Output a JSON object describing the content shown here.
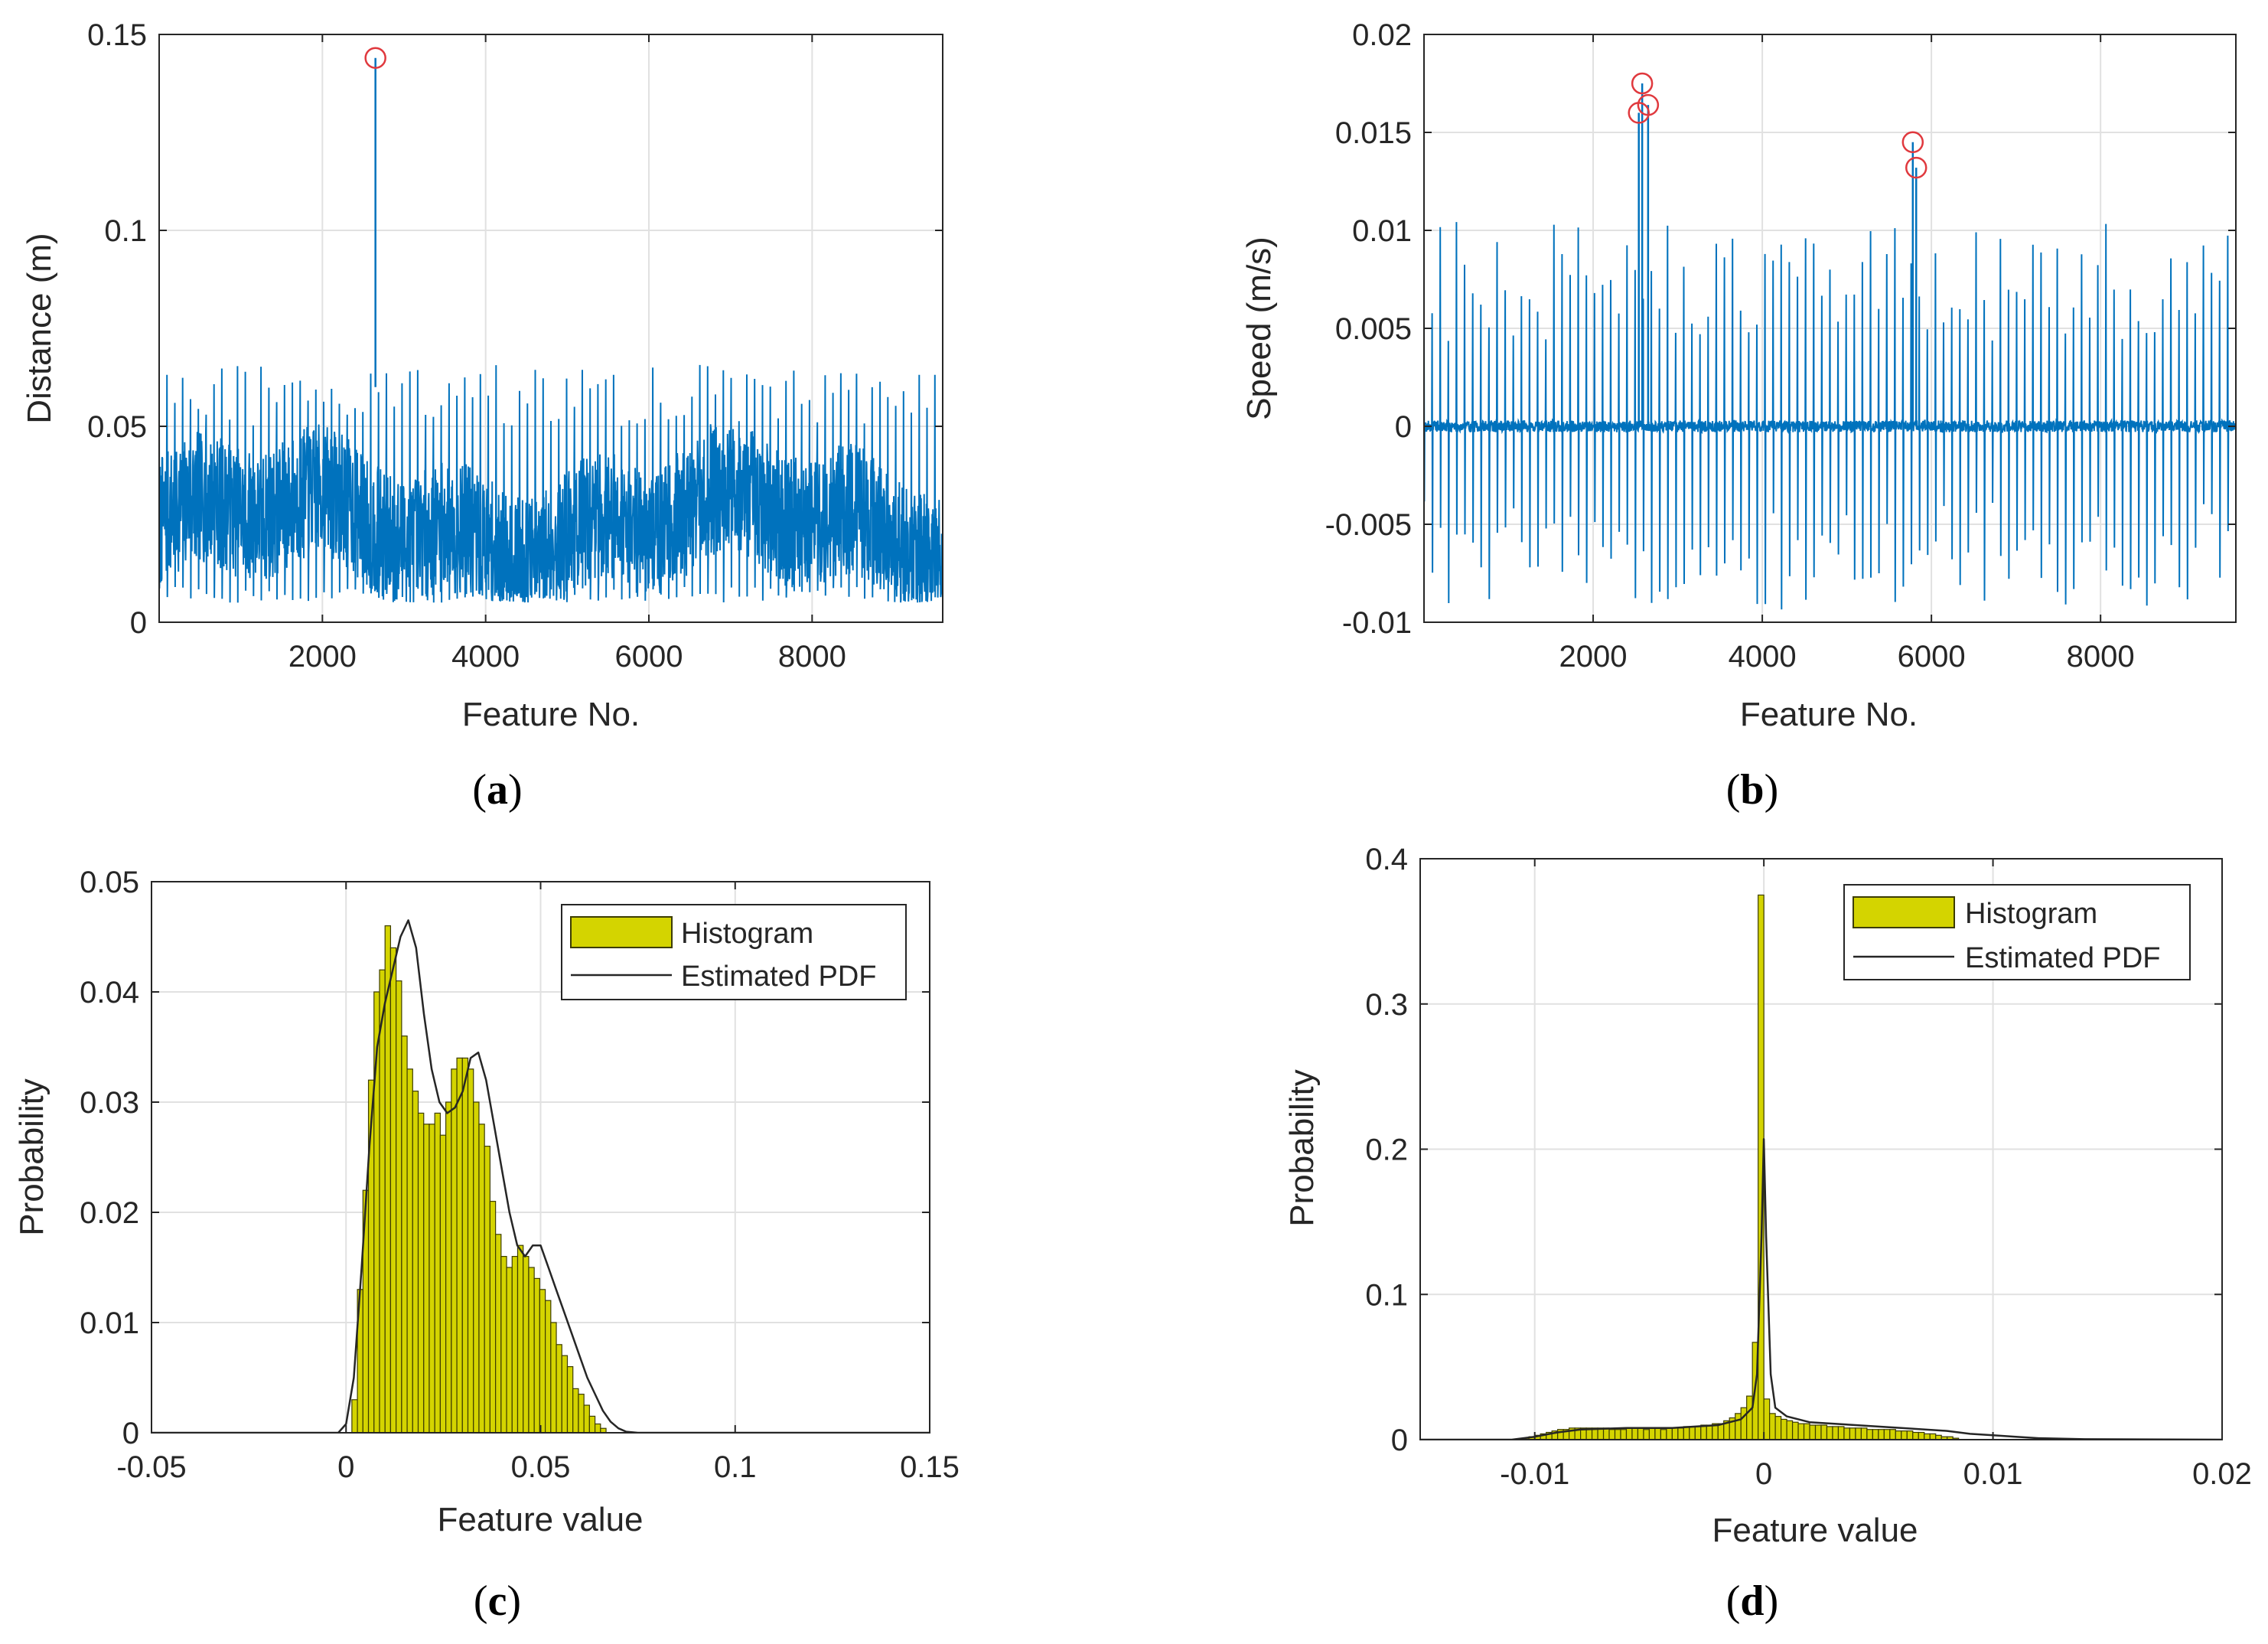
{
  "figure": {
    "panel_labels": [
      {
        "open": "(",
        "letter": "a",
        "close": ")"
      },
      {
        "open": "(",
        "letter": "b",
        "close": ")"
      },
      {
        "open": "(",
        "letter": "c",
        "close": ")"
      },
      {
        "open": "(",
        "letter": "d",
        "close": ")"
      }
    ],
    "colors": {
      "signal": "#0072BD",
      "marker": "#e0393e",
      "histogram_fill": "#d4d400",
      "histogram_edge": "#3d3d00",
      "pdf_line": "#262626",
      "grid": "#e1e1e1",
      "axis": "#262626"
    }
  },
  "chart_data": [
    {
      "type": "line",
      "panel": "a",
      "title": "",
      "xlabel": "Feature No.",
      "ylabel": "Distance (m)",
      "xlim": [
        0,
        9600
      ],
      "ylim": [
        0,
        0.15
      ],
      "xticks": [
        2000,
        4000,
        6000,
        8000
      ],
      "xtick_labels": [
        "2000",
        "4000",
        "6000",
        "8000"
      ],
      "yticks": [
        0,
        0.05,
        0.1,
        0.15
      ],
      "ytick_labels": [
        "0",
        "0.05",
        "0.1",
        "0.15"
      ],
      "grid": true,
      "series": [
        {
          "name": "distance",
          "n_points": 9600,
          "baseline": 0.025,
          "band_low": 0.005,
          "band_high": 0.05,
          "peaks_max": 0.065,
          "peak_every": 96
        }
      ],
      "markers": [
        {
          "x": 2650,
          "y": 0.144
        }
      ]
    },
    {
      "type": "line",
      "panel": "b",
      "title": "",
      "xlabel": "Feature No.",
      "ylabel": "Speed (m/s)",
      "xlim": [
        0,
        9600
      ],
      "ylim": [
        -0.01,
        0.02
      ],
      "xticks": [
        2000,
        4000,
        6000,
        8000
      ],
      "xtick_labels": [
        "2000",
        "4000",
        "6000",
        "8000"
      ],
      "yticks": [
        -0.01,
        -0.005,
        0,
        0.005,
        0.01,
        0.015,
        0.02
      ],
      "ytick_labels": [
        "-0.01",
        "-0.005",
        "0",
        "0.005",
        "0.01",
        "0.015",
        "0.02"
      ],
      "grid": true,
      "series": [
        {
          "name": "speed",
          "n_points": 9600,
          "baseline": 0,
          "pos_typical": 0.0095,
          "neg_typical": -0.0085,
          "peak_every": 96
        }
      ],
      "markers": [
        {
          "x": 2540,
          "y": 0.016
        },
        {
          "x": 2580,
          "y": 0.0175
        },
        {
          "x": 2650,
          "y": 0.0164
        },
        {
          "x": 5780,
          "y": 0.0145
        },
        {
          "x": 5820,
          "y": 0.0132
        }
      ]
    },
    {
      "type": "histogram",
      "panel": "c",
      "title": "",
      "xlabel": "Feature value",
      "ylabel": "Probability",
      "xlim": [
        -0.05,
        0.15
      ],
      "ylim": [
        0,
        0.05
      ],
      "xticks": [
        -0.05,
        0,
        0.05,
        0.1,
        0.15
      ],
      "xtick_labels": [
        "-0.05",
        "0",
        "0.05",
        "0.1",
        "0.15"
      ],
      "yticks": [
        0,
        0.01,
        0.02,
        0.03,
        0.04,
        0.05
      ],
      "ytick_labels": [
        "0",
        "0.01",
        "0.02",
        "0.03",
        "0.04",
        "0.05"
      ],
      "grid": true,
      "legend": {
        "position": "top-right",
        "entries": [
          "Histogram",
          "Estimated PDF"
        ]
      },
      "bin_start": 0.0015,
      "bin_width": 0.00142,
      "values": [
        0.003,
        0.013,
        0.022,
        0.032,
        0.04,
        0.042,
        0.046,
        0.044,
        0.041,
        0.036,
        0.033,
        0.031,
        0.029,
        0.028,
        0.028,
        0.029,
        0.027,
        0.03,
        0.033,
        0.034,
        0.034,
        0.033,
        0.03,
        0.028,
        0.026,
        0.021,
        0.018,
        0.016,
        0.015,
        0.016,
        0.017,
        0.016,
        0.015,
        0.014,
        0.013,
        0.012,
        0.01,
        0.008,
        0.007,
        0.006,
        0.004,
        0.0035,
        0.0025,
        0.0015,
        0.0008,
        0.0004
      ],
      "pdf": {
        "x": [
          -0.05,
          -0.002,
          0.0,
          0.002,
          0.004,
          0.006,
          0.008,
          0.01,
          0.012,
          0.014,
          0.016,
          0.018,
          0.02,
          0.022,
          0.024,
          0.026,
          0.028,
          0.03,
          0.032,
          0.034,
          0.036,
          0.038,
          0.04,
          0.042,
          0.044,
          0.046,
          0.048,
          0.05,
          0.052,
          0.054,
          0.056,
          0.058,
          0.06,
          0.062,
          0.064,
          0.066,
          0.068,
          0.07,
          0.072,
          0.075,
          0.15
        ],
        "y": [
          0,
          0,
          0.0008,
          0.005,
          0.015,
          0.026,
          0.035,
          0.039,
          0.042,
          0.045,
          0.0465,
          0.044,
          0.038,
          0.033,
          0.03,
          0.029,
          0.0295,
          0.031,
          0.034,
          0.0345,
          0.032,
          0.028,
          0.024,
          0.02,
          0.017,
          0.016,
          0.017,
          0.017,
          0.015,
          0.013,
          0.011,
          0.009,
          0.007,
          0.005,
          0.0035,
          0.002,
          0.001,
          0.0004,
          0.0001,
          0,
          0
        ]
      }
    },
    {
      "type": "histogram",
      "panel": "d",
      "title": "",
      "xlabel": "Feature value",
      "ylabel": "Probability",
      "xlim": [
        -0.015,
        0.02
      ],
      "ylim": [
        0,
        0.4
      ],
      "xticks": [
        -0.01,
        0,
        0.01,
        0.02
      ],
      "xtick_labels": [
        "-0.01",
        "0",
        "0.01",
        "0.02"
      ],
      "yticks": [
        0,
        0.1,
        0.2,
        0.3,
        0.4
      ],
      "ytick_labels": [
        "0",
        "0.1",
        "0.2",
        "0.3",
        "0.4"
      ],
      "grid": true,
      "legend": {
        "position": "top-right",
        "entries": [
          "Histogram",
          "Estimated PDF"
        ]
      },
      "bin_start": -0.0105,
      "bin_width": 0.00025,
      "values": [
        0.001,
        0.002,
        0.003,
        0.004,
        0.005,
        0.006,
        0.007,
        0.007,
        0.008,
        0.008,
        0.008,
        0.008,
        0.008,
        0.008,
        0.008,
        0.007,
        0.007,
        0.007,
        0.008,
        0.008,
        0.008,
        0.007,
        0.008,
        0.008,
        0.007,
        0.008,
        0.008,
        0.008,
        0.009,
        0.009,
        0.009,
        0.01,
        0.01,
        0.011,
        0.011,
        0.013,
        0.015,
        0.018,
        0.022,
        0.03,
        0.067,
        0.375,
        0.028,
        0.018,
        0.016,
        0.014,
        0.013,
        0.012,
        0.011,
        0.011,
        0.01,
        0.01,
        0.01,
        0.009,
        0.009,
        0.009,
        0.008,
        0.008,
        0.008,
        0.008,
        0.007,
        0.007,
        0.007,
        0.007,
        0.007,
        0.006,
        0.006,
        0.006,
        0.005,
        0.005,
        0.004,
        0.004,
        0.003,
        0.002,
        0.002,
        0.001
      ],
      "pdf": {
        "x": [
          -0.015,
          -0.011,
          -0.01,
          -0.009,
          -0.008,
          -0.006,
          -0.004,
          -0.002,
          -0.001,
          -0.0005,
          -0.0003,
          -0.0001,
          0.0,
          0.0001,
          0.0003,
          0.0005,
          0.001,
          0.002,
          0.004,
          0.006,
          0.008,
          0.009,
          0.01,
          0.011,
          0.012,
          0.014,
          0.02
        ],
        "y": [
          0,
          0,
          0.002,
          0.005,
          0.007,
          0.008,
          0.008,
          0.01,
          0.014,
          0.022,
          0.045,
          0.14,
          0.207,
          0.14,
          0.045,
          0.022,
          0.016,
          0.012,
          0.01,
          0.008,
          0.006,
          0.004,
          0.003,
          0.002,
          0.001,
          0.0003,
          0
        ]
      }
    }
  ]
}
